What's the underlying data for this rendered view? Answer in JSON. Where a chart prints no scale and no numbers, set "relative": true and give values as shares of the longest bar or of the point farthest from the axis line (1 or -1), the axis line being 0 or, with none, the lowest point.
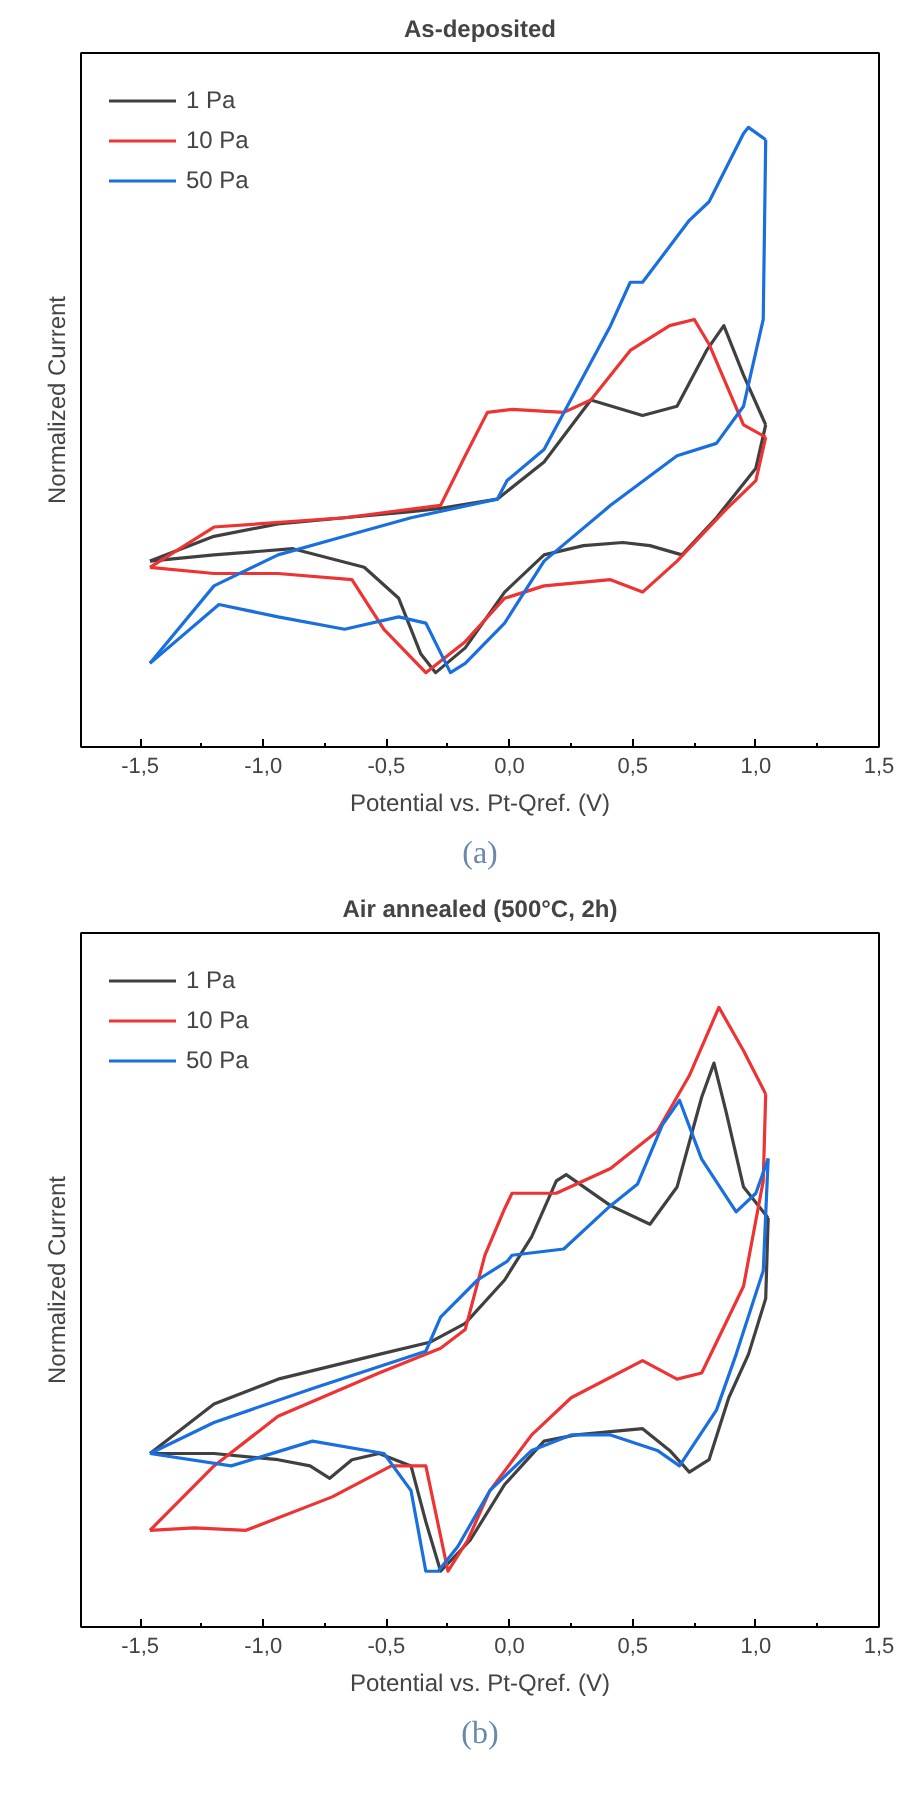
{
  "chart_data": [
    {
      "type": "line",
      "title": "As-deposited",
      "xlabel": "Potential vs. Pt-Qref. (V)",
      "ylabel": "Normalized Current",
      "relative": true,
      "legend": "top left",
      "grid": false,
      "tick_labels": "x",
      "annotations": [
        "(a)"
      ],
      "xlim": [
        -1.74,
        1.5
      ],
      "xticks": [
        {
          "value": -1.5,
          "label": "-1,5"
        },
        {
          "value": -1.0,
          "label": "-1,0"
        },
        {
          "value": -0.5,
          "label": "-0,5"
        },
        {
          "value": 0.0,
          "label": "0,0"
        },
        {
          "value": 0.5,
          "label": "0,5"
        },
        {
          "value": 1.0,
          "label": "1,0"
        },
        {
          "value": 1.5,
          "label": "1,5"
        }
      ],
      "series": [
        {
          "name": "1 Pa",
          "color": "#404040",
          "x": [
            -1.46,
            -1.2,
            -0.94,
            -0.67,
            -0.4,
            -0.28,
            -0.05,
            0.14,
            0.33,
            0.54,
            0.68,
            0.8,
            0.87,
            0.95,
            1.04
          ],
          "values": [
            0.3,
            0.34,
            0.36,
            0.37,
            0.38,
            0.385,
            0.4,
            0.46,
            0.56,
            0.535,
            0.55,
            0.64,
            0.68,
            0.6,
            0.52
          ]
        },
        {
          "color": "#404040",
          "x": [
            -1.46,
            -1.2,
            -0.88,
            -0.59,
            -0.45,
            -0.36,
            -0.3,
            -0.18,
            -0.02,
            0.14,
            0.3,
            0.46,
            0.57,
            0.7,
            0.84,
            1.0,
            1.04
          ],
          "values": [
            0.3,
            0.31,
            0.32,
            0.29,
            0.24,
            0.15,
            0.12,
            0.16,
            0.25,
            0.31,
            0.325,
            0.33,
            0.325,
            0.31,
            0.37,
            0.45,
            0.52
          ]
        },
        {
          "name": "10 Pa",
          "color": "#ee3333",
          "x": [
            -1.46,
            -1.2,
            -0.67,
            -0.28,
            -0.18,
            -0.09,
            0.01,
            0.22,
            0.33,
            0.49,
            0.65,
            0.75,
            0.81,
            0.95,
            1.04
          ],
          "values": [
            0.29,
            0.355,
            0.37,
            0.39,
            0.47,
            0.54,
            0.545,
            0.54,
            0.56,
            0.64,
            0.68,
            0.69,
            0.65,
            0.52,
            0.5
          ]
        },
        {
          "color": "#ee3333",
          "x": [
            -1.46,
            -1.2,
            -0.94,
            -0.64,
            -0.51,
            -0.34,
            -0.18,
            -0.02,
            0.14,
            0.41,
            0.54,
            0.68,
            0.87,
            1.0,
            1.04
          ],
          "values": [
            0.29,
            0.28,
            0.28,
            0.27,
            0.19,
            0.12,
            0.17,
            0.24,
            0.26,
            0.27,
            0.25,
            0.3,
            0.38,
            0.43,
            0.5
          ]
        },
        {
          "name": "50 Pa",
          "color": "#1a6fdf",
          "x": [
            -1.46,
            -1.2,
            -0.94,
            -0.67,
            -0.4,
            -0.05,
            -0.01,
            0.14,
            0.41,
            0.49,
            0.54,
            0.73,
            0.81,
            0.95,
            0.97,
            1.04
          ],
          "values": [
            0.135,
            0.26,
            0.31,
            0.34,
            0.37,
            0.4,
            0.43,
            0.48,
            0.68,
            0.75,
            0.75,
            0.85,
            0.88,
            0.99,
            1.0,
            0.98
          ]
        },
        {
          "color": "#1a6fdf",
          "x": [
            -1.46,
            -1.18,
            -0.94,
            -0.67,
            -0.45,
            -0.34,
            -0.29,
            -0.24,
            -0.18,
            -0.02,
            0.14,
            0.41,
            0.68,
            0.84,
            0.95,
            1.03,
            1.04
          ],
          "values": [
            0.135,
            0.23,
            0.21,
            0.19,
            0.21,
            0.2,
            0.16,
            0.12,
            0.135,
            0.2,
            0.3,
            0.39,
            0.47,
            0.49,
            0.55,
            0.69,
            0.98
          ]
        }
      ]
    },
    {
      "type": "line",
      "title": "Air annealed (500°C, 2h)",
      "xlabel": "Potential vs. Pt-Qref. (V)",
      "ylabel": "Normalized Current",
      "relative": true,
      "legend": "top left",
      "grid": false,
      "tick_labels": "x",
      "annotations": [
        "(b)"
      ],
      "xlim": [
        -1.74,
        1.5
      ],
      "xticks": [
        {
          "value": -1.5,
          "label": "-1,5"
        },
        {
          "value": -1.0,
          "label": "-1,0"
        },
        {
          "value": -0.5,
          "label": "-0,5"
        },
        {
          "value": 0.0,
          "label": "0,0"
        },
        {
          "value": 0.5,
          "label": "0,5"
        },
        {
          "value": 1.0,
          "label": "1,0"
        },
        {
          "value": 1.5,
          "label": "1,5"
        }
      ],
      "series": [
        {
          "name": "1 Pa",
          "color": "#404040",
          "x": [
            -1.46,
            -1.2,
            -0.94,
            -0.53,
            -0.32,
            -0.18,
            -0.02,
            0.09,
            0.19,
            0.23,
            0.41,
            0.57,
            0.68,
            0.78,
            0.83,
            0.88,
            0.95,
            1.05
          ],
          "values": [
            0.28,
            0.36,
            0.4,
            0.44,
            0.46,
            0.49,
            0.56,
            0.63,
            0.72,
            0.73,
            0.68,
            0.65,
            0.71,
            0.855,
            0.91,
            0.83,
            0.71,
            0.66
          ]
        },
        {
          "color": "#404040",
          "x": [
            -1.46,
            -1.2,
            -0.94,
            -0.81,
            -0.73,
            -0.64,
            -0.53,
            -0.4,
            -0.34,
            -0.28,
            -0.16,
            -0.02,
            0.14,
            0.27,
            0.54,
            0.65,
            0.73,
            0.81,
            0.89,
            0.97,
            1.04,
            1.05
          ],
          "values": [
            0.28,
            0.28,
            0.27,
            0.26,
            0.24,
            0.27,
            0.28,
            0.26,
            0.17,
            0.09,
            0.14,
            0.23,
            0.3,
            0.31,
            0.32,
            0.285,
            0.25,
            0.27,
            0.37,
            0.44,
            0.53,
            0.66
          ]
        },
        {
          "name": "10 Pa",
          "color": "#ee3333",
          "x": [
            -1.46,
            -1.2,
            -0.94,
            -0.53,
            -0.28,
            -0.18,
            -0.1,
            -0.02,
            0.01,
            0.19,
            0.41,
            0.6,
            0.73,
            0.85,
            0.95,
            1.04
          ],
          "values": [
            0.156,
            0.26,
            0.34,
            0.41,
            0.45,
            0.48,
            0.6,
            0.675,
            0.7,
            0.7,
            0.74,
            0.8,
            0.89,
            1.0,
            0.93,
            0.86
          ]
        },
        {
          "color": "#ee3333",
          "x": [
            -1.46,
            -1.28,
            -1.07,
            -0.72,
            -0.48,
            -0.34,
            -0.25,
            -0.17,
            -0.08,
            0.09,
            0.25,
            0.54,
            0.68,
            0.78,
            0.95,
            1.03,
            1.04
          ],
          "values": [
            0.156,
            0.16,
            0.156,
            0.21,
            0.26,
            0.26,
            0.09,
            0.14,
            0.22,
            0.31,
            0.37,
            0.43,
            0.4,
            0.41,
            0.55,
            0.72,
            0.86
          ]
        },
        {
          "name": "50 Pa",
          "color": "#1a6fdf",
          "x": [
            -1.46,
            -1.2,
            -0.8,
            -0.34,
            -0.28,
            -0.13,
            -0.01,
            0.01,
            0.22,
            0.41,
            0.52,
            0.62,
            0.69,
            0.78,
            0.92,
            1.0,
            1.05
          ],
          "values": [
            0.28,
            0.33,
            0.385,
            0.445,
            0.5,
            0.56,
            0.59,
            0.6,
            0.61,
            0.68,
            0.715,
            0.81,
            0.85,
            0.755,
            0.67,
            0.7,
            0.756
          ]
        },
        {
          "color": "#1a6fdf",
          "x": [
            -1.46,
            -1.13,
            -0.8,
            -0.51,
            -0.4,
            -0.34,
            -0.29,
            -0.21,
            -0.08,
            0.09,
            0.25,
            0.41,
            0.6,
            0.69,
            0.84,
            0.92,
            1.03,
            1.05
          ],
          "values": [
            0.28,
            0.26,
            0.3,
            0.28,
            0.22,
            0.09,
            0.09,
            0.13,
            0.22,
            0.285,
            0.31,
            0.31,
            0.285,
            0.26,
            0.35,
            0.44,
            0.575,
            0.756
          ]
        }
      ]
    }
  ]
}
